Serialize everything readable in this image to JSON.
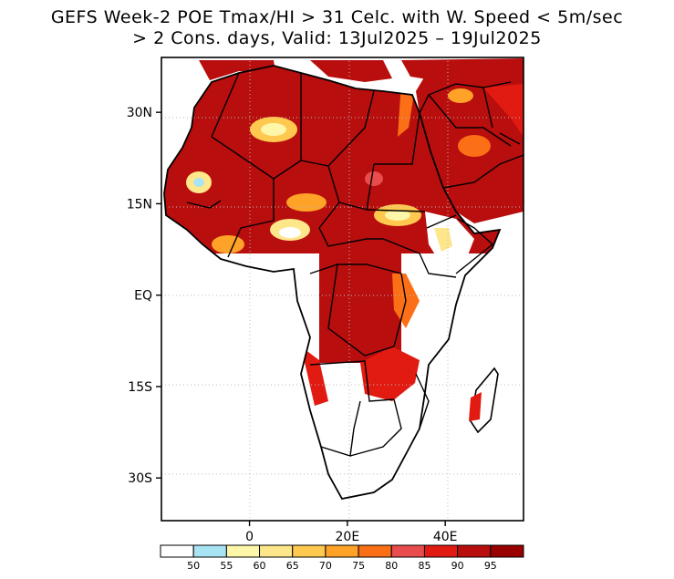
{
  "title": {
    "line1": "GEFS Week-2 POE Tmax/HI > 31 Celc. with W. Speed < 5m/sec",
    "line2": "> 2 Cons. days, Valid: 13Jul2025 – 19Jul2025"
  },
  "axes": {
    "y_ticks": [
      {
        "label": "30N",
        "lat": 30
      },
      {
        "label": "15N",
        "lat": 15
      },
      {
        "label": "EQ",
        "lat": 0
      },
      {
        "label": "15S",
        "lat": -15
      },
      {
        "label": "30S",
        "lat": -30
      }
    ],
    "x_ticks": [
      {
        "label": "0",
        "lon": 0
      },
      {
        "label": "20E",
        "lon": 20
      },
      {
        "label": "40E",
        "lon": 40
      }
    ],
    "lon_range": [
      -18,
      56
    ],
    "lat_range": [
      -37,
      39
    ],
    "gridlines": "dotted"
  },
  "colorbar": {
    "colors": [
      "#ffffff",
      "#a8e4f4",
      "#fef6a8",
      "#fee68a",
      "#fec94e",
      "#fea228",
      "#fb6f16",
      "#e84c4c",
      "#e11b12",
      "#b80e0e",
      "#990000"
    ],
    "labels": [
      "50",
      "55",
      "60",
      "65",
      "70",
      "75",
      "80",
      "85",
      "90",
      "95"
    ]
  }
}
